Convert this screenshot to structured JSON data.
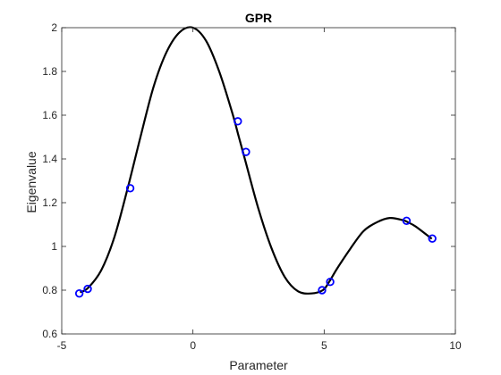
{
  "chart_data": {
    "type": "line",
    "title": "GPR",
    "xlabel": "Parameter",
    "ylabel": "Eigenvalue",
    "xlim": [
      -5,
      10
    ],
    "ylim": [
      0.6,
      2.0
    ],
    "xticks": [
      -5,
      0,
      5,
      10
    ],
    "yticks": [
      0.6,
      0.8,
      1.0,
      1.2,
      1.4,
      1.6,
      1.8,
      2.0
    ],
    "xtick_labels": [
      "-5",
      "0",
      "5",
      "10"
    ],
    "ytick_labels": [
      "0.6",
      "0.8",
      "1",
      "1.2",
      "1.4",
      "1.6",
      "1.8",
      "2"
    ],
    "grid": false,
    "series": [
      {
        "kind": "line",
        "color": "#000000",
        "x": [
          -4.3,
          -4.0,
          -3.5,
          -3.0,
          -2.5,
          -2.0,
          -1.5,
          -1.0,
          -0.5,
          0.0,
          0.5,
          1.0,
          1.5,
          1.75,
          2.0,
          2.5,
          3.0,
          3.5,
          4.0,
          4.5,
          4.95,
          5.2,
          5.5,
          6.0,
          6.5,
          7.0,
          7.5,
          8.0,
          8.2,
          8.5,
          9.1
        ],
        "y": [
          0.79,
          0.81,
          0.89,
          1.04,
          1.26,
          1.5,
          1.73,
          1.89,
          1.98,
          2.0,
          1.94,
          1.8,
          1.61,
          1.5,
          1.39,
          1.17,
          0.99,
          0.86,
          0.795,
          0.785,
          0.8,
          0.84,
          0.9,
          0.99,
          1.07,
          1.11,
          1.13,
          1.12,
          1.11,
          1.09,
          1.035
        ]
      },
      {
        "kind": "markers",
        "marker": "circle",
        "color": "#0000ff",
        "x": [
          -4.33,
          -4.01,
          -2.39,
          1.71,
          2.02,
          4.92,
          5.23,
          8.14,
          9.12
        ],
        "y": [
          0.785,
          0.806,
          1.266,
          1.572,
          1.432,
          0.8,
          0.838,
          1.117,
          1.036
        ]
      }
    ]
  }
}
